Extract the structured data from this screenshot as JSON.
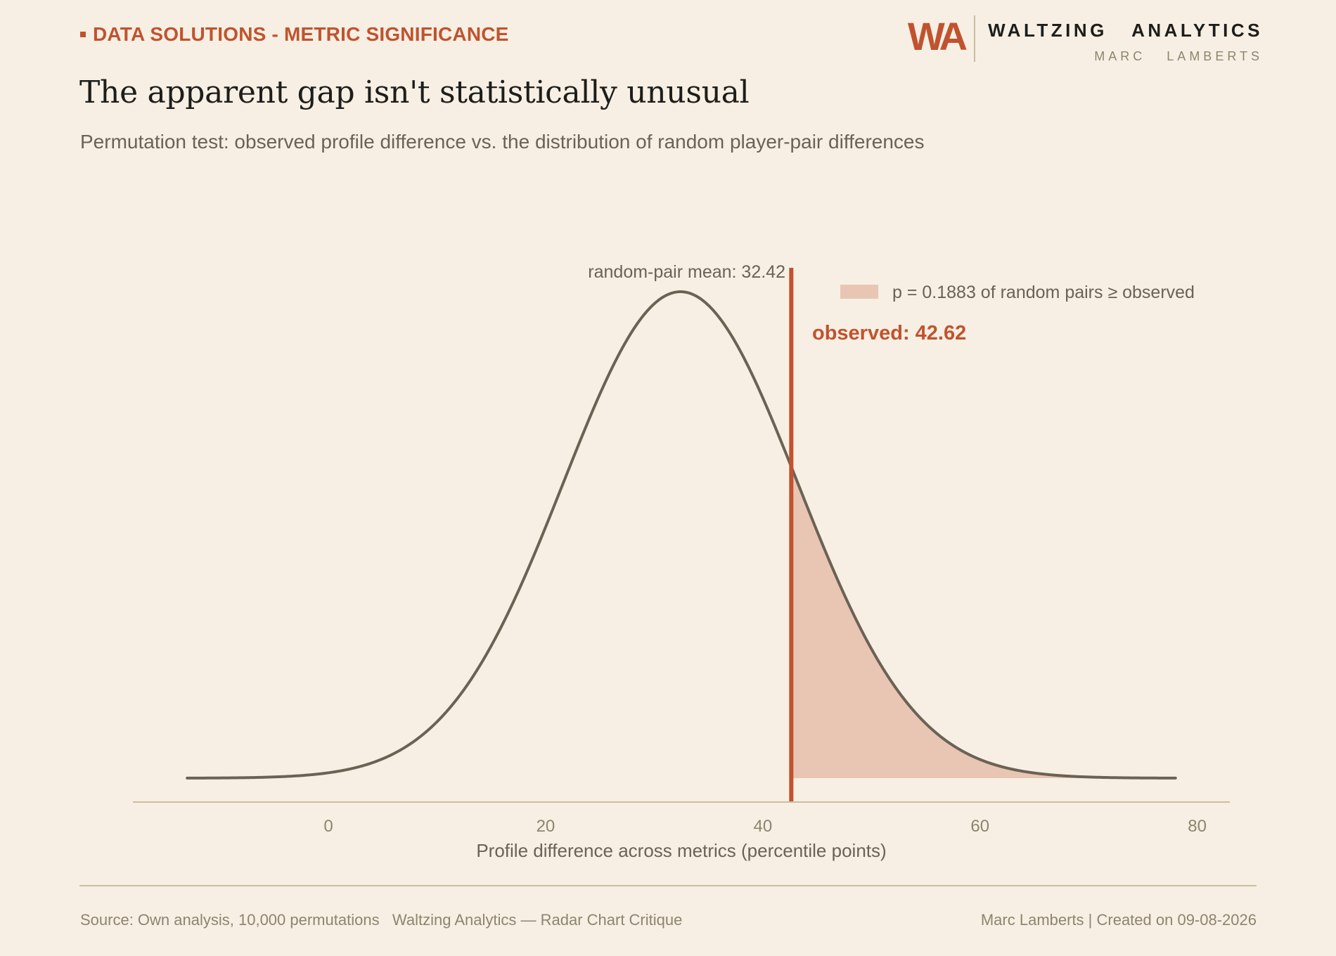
{
  "header": {
    "kicker": "DATA SOLUTIONS - METRIC SIGNIFICANCE",
    "title": "The apparent gap isn't statistically unusual",
    "subtitle": "Permutation test: observed profile difference vs. the distribution of random player-pair differences"
  },
  "brand": {
    "logo": "WA",
    "name": "WALTZING   ANALYTICS",
    "author": "MARC   LAMBERTS"
  },
  "colors": {
    "background": "#f7efe3",
    "accent": "#c0532f",
    "curve": "#6b6254",
    "tail_fill": "#e8c6b3",
    "axis": "#cbbd9f",
    "muted_text": "#8d8470"
  },
  "chart_data": {
    "type": "area",
    "distribution": "normal",
    "mean": 32.42,
    "sd": 10.8,
    "x_range": [
      -13,
      78
    ],
    "xlim": [
      -18,
      83
    ],
    "xticks": [
      0,
      20,
      40,
      60,
      80
    ],
    "xlabel": "Profile difference across metrics (percentile points)",
    "observed": 42.62,
    "p_value": 0.1883,
    "annotations": {
      "mean_label": "random-pair mean: 32.42",
      "observed_label": "observed: 42.62",
      "legend_label": "p = 0.1883 of random pairs ≥ observed"
    },
    "grid": false,
    "legend_position": "top-right"
  },
  "footer": {
    "left": "Source: Own analysis, 10,000 permutations   Waltzing Analytics — Radar Chart Critique",
    "right": "Marc Lamberts | Created on 09-08-2026"
  }
}
